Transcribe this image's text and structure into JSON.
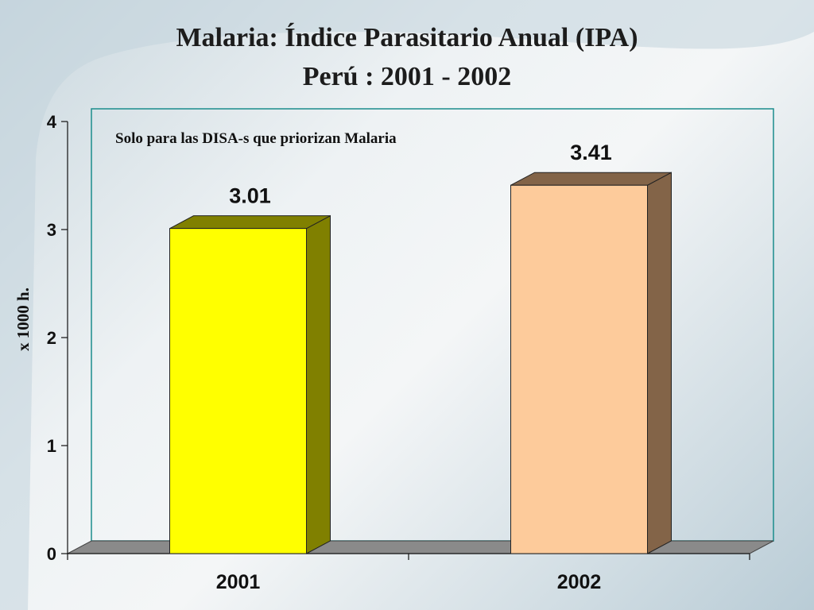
{
  "slide": {
    "title_line1": "Malaria: Índice Parasitario Anual (IPA)",
    "title_line2": "Perú : 2001 - 2002"
  },
  "chart_data": {
    "type": "bar",
    "categories": [
      "2001",
      "2002"
    ],
    "values": [
      3.01,
      3.41
    ],
    "value_labels": [
      "3.01",
      "3.41"
    ],
    "bar_colors": [
      "#ffff00",
      "#fdcb9b"
    ],
    "bar_side_colors": [
      "#808000",
      "#836448"
    ],
    "ylabel": "x 1000 h.",
    "xlabel": "",
    "ylim": [
      0,
      4
    ],
    "yticks": [
      0,
      1,
      2,
      3,
      4
    ],
    "annotation": "Solo para las DISA-s que priorizan Malaria",
    "grid": false,
    "legend": "none",
    "frame_color": "#1a8c8c",
    "floor_color": "#8a8a8a"
  }
}
